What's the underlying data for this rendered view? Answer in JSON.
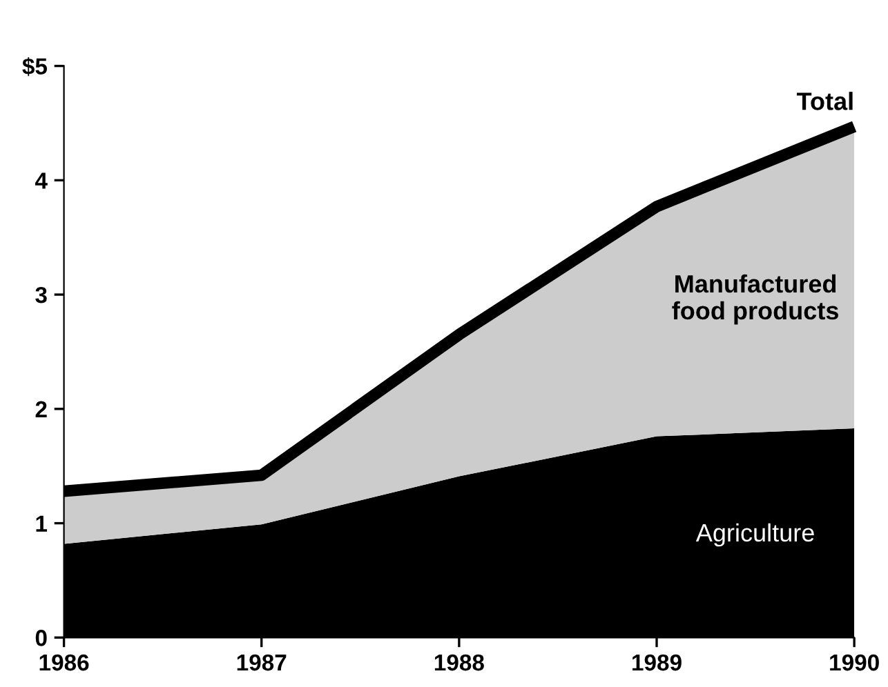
{
  "chart_data": {
    "type": "area",
    "stacked": true,
    "x": [
      1986,
      1987,
      1988,
      1989,
      1990
    ],
    "series": [
      {
        "name": "Agriculture",
        "color": "#000000",
        "values": [
          0.82,
          0.99,
          1.41,
          1.76,
          1.83
        ]
      },
      {
        "name": "Manufactured\nfood products",
        "color": "#cccccc",
        "values": [
          0.46,
          0.43,
          1.24,
          2.01,
          2.64
        ]
      }
    ],
    "annotations": [
      {
        "text": "Total",
        "x": 1990,
        "y": 4.47
      }
    ],
    "xlim": [
      1986,
      1990
    ],
    "xticks": [
      1986,
      1987,
      1988,
      1989,
      1990
    ],
    "ylim": [
      0,
      5
    ],
    "yticks": [
      0,
      1,
      2,
      3,
      4,
      {
        "value": 5,
        "label": "$5"
      }
    ],
    "grid": false,
    "legend": false
  }
}
